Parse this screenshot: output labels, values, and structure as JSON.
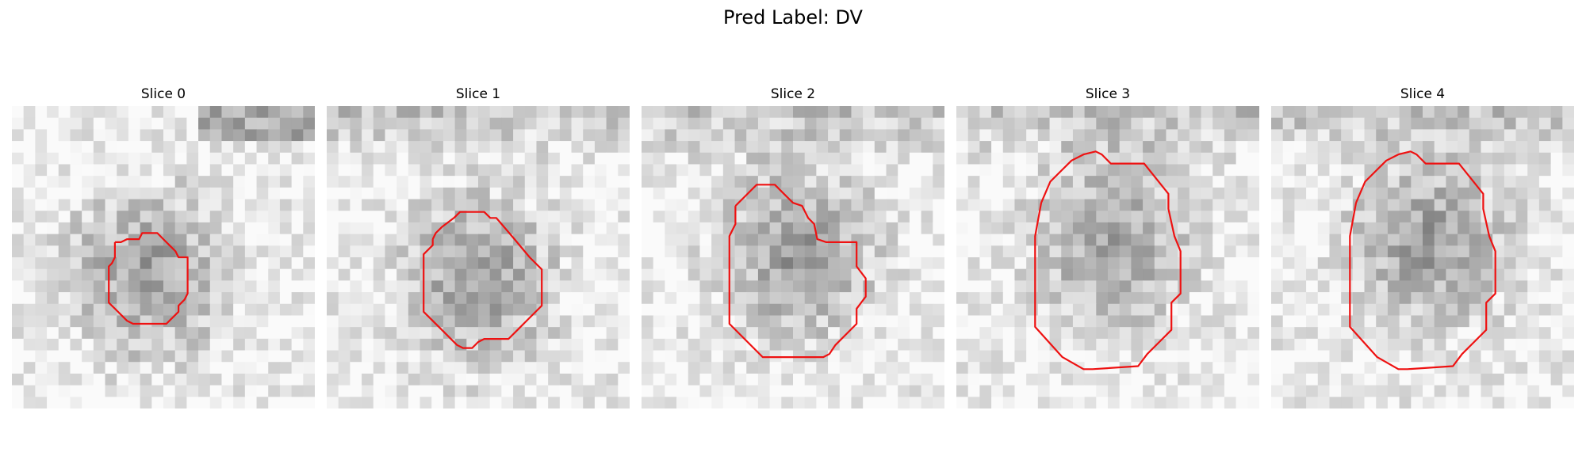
{
  "figure": {
    "title": "Pred Label: DV"
  },
  "slices": [
    {
      "title": "Slice 0",
      "contour_color": "#ee1111",
      "contour": [
        [
          0.34,
          0.45
        ],
        [
          0.36,
          0.45
        ],
        [
          0.38,
          0.44
        ],
        [
          0.42,
          0.44
        ],
        [
          0.43,
          0.42
        ],
        [
          0.48,
          0.42
        ],
        [
          0.5,
          0.44
        ],
        [
          0.52,
          0.46
        ],
        [
          0.54,
          0.48
        ],
        [
          0.55,
          0.5
        ],
        [
          0.58,
          0.5
        ],
        [
          0.58,
          0.58
        ],
        [
          0.58,
          0.62
        ],
        [
          0.57,
          0.64
        ],
        [
          0.55,
          0.66
        ],
        [
          0.55,
          0.68
        ],
        [
          0.52,
          0.71
        ],
        [
          0.51,
          0.72
        ],
        [
          0.4,
          0.72
        ],
        [
          0.38,
          0.71
        ],
        [
          0.34,
          0.67
        ],
        [
          0.32,
          0.65
        ],
        [
          0.32,
          0.53
        ],
        [
          0.33,
          0.52
        ],
        [
          0.34,
          0.5
        ],
        [
          0.34,
          0.45
        ]
      ]
    },
    {
      "title": "Slice 1",
      "contour_color": "#ee1111",
      "contour": [
        [
          0.35,
          0.44
        ],
        [
          0.36,
          0.42
        ],
        [
          0.38,
          0.4
        ],
        [
          0.42,
          0.37
        ],
        [
          0.44,
          0.35
        ],
        [
          0.52,
          0.35
        ],
        [
          0.54,
          0.37
        ],
        [
          0.56,
          0.37
        ],
        [
          0.62,
          0.44
        ],
        [
          0.67,
          0.5
        ],
        [
          0.71,
          0.54
        ],
        [
          0.71,
          0.66
        ],
        [
          0.67,
          0.7
        ],
        [
          0.65,
          0.72
        ],
        [
          0.63,
          0.74
        ],
        [
          0.6,
          0.77
        ],
        [
          0.52,
          0.77
        ],
        [
          0.5,
          0.78
        ],
        [
          0.48,
          0.8
        ],
        [
          0.45,
          0.8
        ],
        [
          0.43,
          0.79
        ],
        [
          0.38,
          0.74
        ],
        [
          0.32,
          0.68
        ],
        [
          0.32,
          0.49
        ],
        [
          0.35,
          0.46
        ],
        [
          0.35,
          0.44
        ]
      ]
    },
    {
      "title": "Slice 2",
      "contour_color": "#ee1111",
      "contour": [
        [
          0.31,
          0.33
        ],
        [
          0.34,
          0.3
        ],
        [
          0.36,
          0.28
        ],
        [
          0.38,
          0.26
        ],
        [
          0.44,
          0.26
        ],
        [
          0.47,
          0.29
        ],
        [
          0.5,
          0.32
        ],
        [
          0.53,
          0.33
        ],
        [
          0.55,
          0.37
        ],
        [
          0.57,
          0.39
        ],
        [
          0.58,
          0.44
        ],
        [
          0.61,
          0.45
        ],
        [
          0.71,
          0.45
        ],
        [
          0.71,
          0.53
        ],
        [
          0.74,
          0.57
        ],
        [
          0.74,
          0.63
        ],
        [
          0.71,
          0.67
        ],
        [
          0.71,
          0.72
        ],
        [
          0.64,
          0.79
        ],
        [
          0.62,
          0.82
        ],
        [
          0.6,
          0.83
        ],
        [
          0.4,
          0.83
        ],
        [
          0.29,
          0.72
        ],
        [
          0.29,
          0.43
        ],
        [
          0.31,
          0.39
        ],
        [
          0.31,
          0.33
        ]
      ]
    },
    {
      "title": "Slice 3",
      "contour_color": "#ee1111",
      "contour": [
        [
          0.28,
          0.32
        ],
        [
          0.31,
          0.25
        ],
        [
          0.34,
          0.22
        ],
        [
          0.38,
          0.18
        ],
        [
          0.42,
          0.16
        ],
        [
          0.46,
          0.15
        ],
        [
          0.48,
          0.16
        ],
        [
          0.51,
          0.19
        ],
        [
          0.55,
          0.19
        ],
        [
          0.62,
          0.19
        ],
        [
          0.66,
          0.24
        ],
        [
          0.7,
          0.29
        ],
        [
          0.7,
          0.34
        ],
        [
          0.72,
          0.43
        ],
        [
          0.74,
          0.48
        ],
        [
          0.74,
          0.62
        ],
        [
          0.71,
          0.65
        ],
        [
          0.71,
          0.74
        ],
        [
          0.67,
          0.78
        ],
        [
          0.63,
          0.82
        ],
        [
          0.6,
          0.86
        ],
        [
          0.45,
          0.87
        ],
        [
          0.42,
          0.87
        ],
        [
          0.35,
          0.83
        ],
        [
          0.26,
          0.73
        ],
        [
          0.26,
          0.43
        ],
        [
          0.28,
          0.32
        ]
      ]
    },
    {
      "title": "Slice 4",
      "contour_color": "#ee1111",
      "contour": [
        [
          0.28,
          0.32
        ],
        [
          0.31,
          0.25
        ],
        [
          0.34,
          0.22
        ],
        [
          0.38,
          0.18
        ],
        [
          0.42,
          0.16
        ],
        [
          0.46,
          0.15
        ],
        [
          0.48,
          0.16
        ],
        [
          0.51,
          0.19
        ],
        [
          0.55,
          0.19
        ],
        [
          0.62,
          0.19
        ],
        [
          0.66,
          0.24
        ],
        [
          0.7,
          0.29
        ],
        [
          0.7,
          0.34
        ],
        [
          0.72,
          0.43
        ],
        [
          0.74,
          0.48
        ],
        [
          0.74,
          0.62
        ],
        [
          0.71,
          0.65
        ],
        [
          0.71,
          0.74
        ],
        [
          0.67,
          0.78
        ],
        [
          0.63,
          0.82
        ],
        [
          0.6,
          0.86
        ],
        [
          0.45,
          0.87
        ],
        [
          0.42,
          0.87
        ],
        [
          0.35,
          0.83
        ],
        [
          0.26,
          0.73
        ],
        [
          0.26,
          0.43
        ],
        [
          0.28,
          0.32
        ]
      ]
    }
  ]
}
